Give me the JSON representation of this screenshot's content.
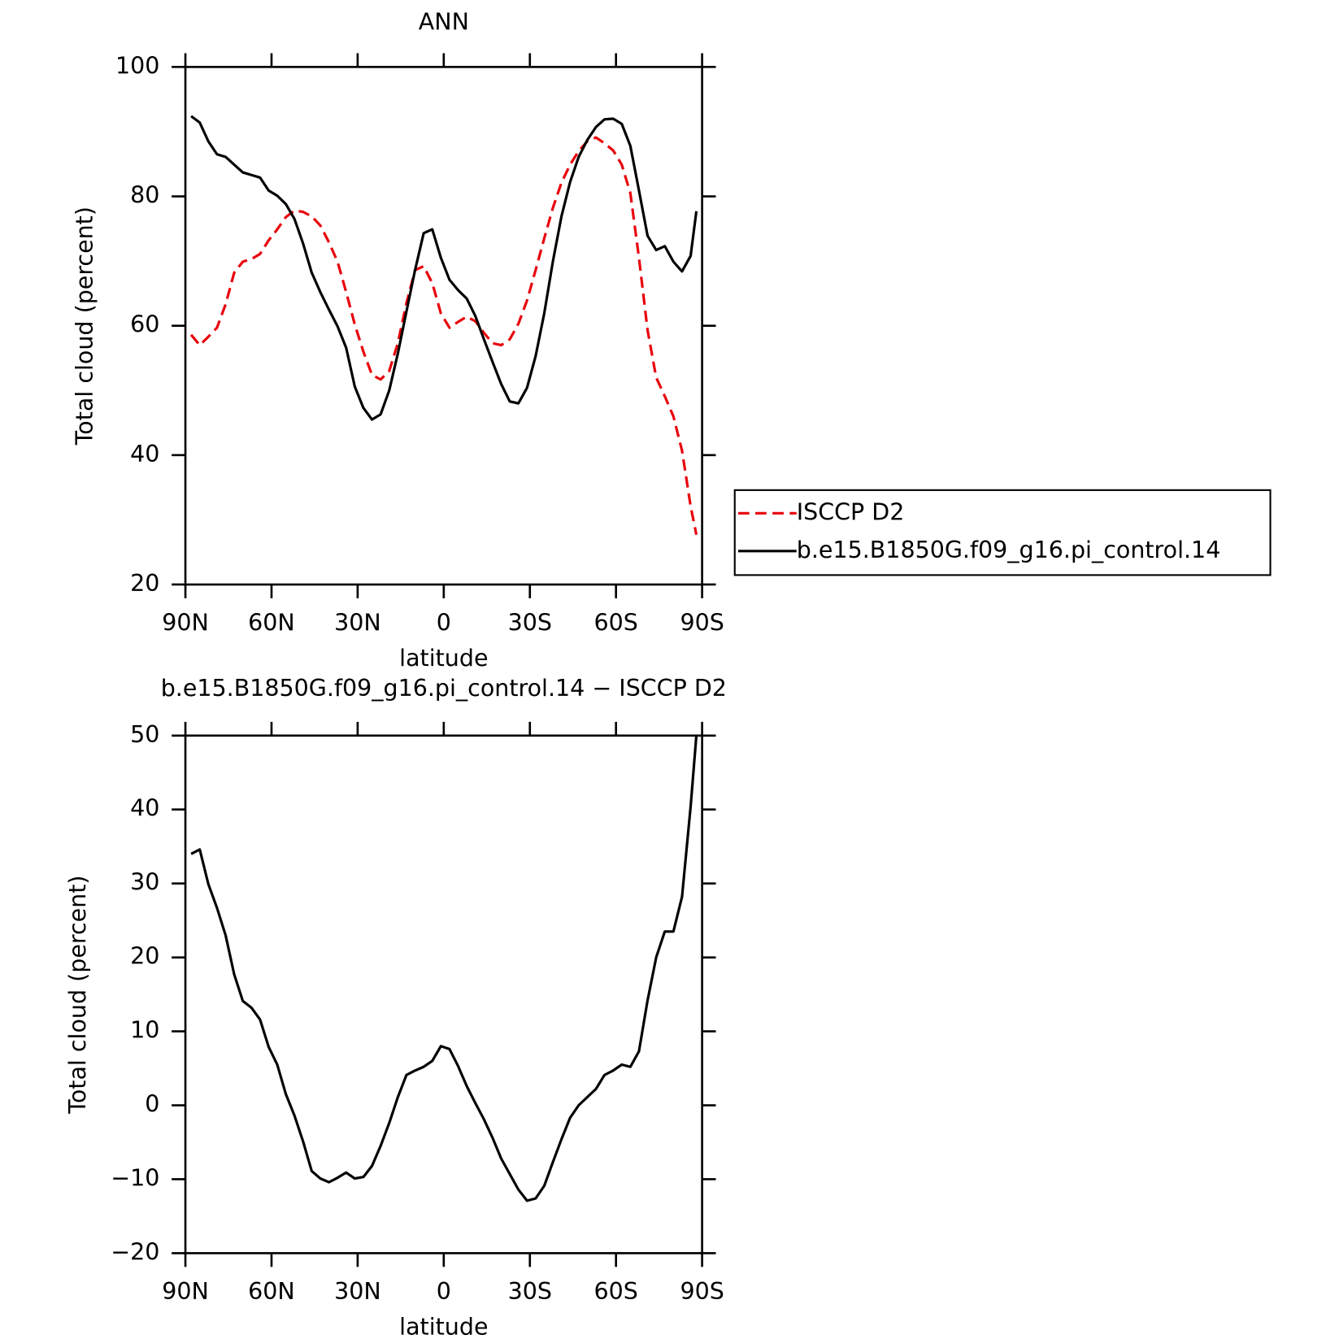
{
  "chart_data": [
    {
      "type": "line",
      "title": "ANN",
      "xlabel": "latitude",
      "ylabel": "Total cloud (percent)",
      "x": [
        88,
        85,
        82,
        79,
        76,
        73,
        70,
        67,
        64,
        61,
        58,
        55,
        52,
        49,
        46,
        43,
        40,
        37,
        34,
        31,
        28,
        25,
        22,
        19,
        16,
        13,
        10,
        7,
        4,
        1,
        -2,
        -5,
        -8,
        -11,
        -14,
        -17,
        -20,
        -23,
        -26,
        -29,
        -32,
        -35,
        -38,
        -41,
        -44,
        -47,
        -50,
        -53,
        -56,
        -59,
        -62,
        -65,
        -68,
        -71,
        -74,
        -77,
        -80,
        -83,
        -86,
        -88
      ],
      "series": [
        {
          "name": "ISCCP D2",
          "color": "#e8000b",
          "dashed": true,
          "values": [
            58.6,
            57.0,
            58.3,
            59.7,
            63.3,
            68.2,
            69.9,
            70.3,
            71.1,
            73.2,
            74.9,
            76.8,
            77.8,
            77.6,
            76.9,
            75.5,
            72.9,
            69.9,
            65.2,
            60.2,
            56.0,
            52.4,
            51.7,
            53.0,
            57.3,
            63.5,
            68.6,
            69.2,
            66.6,
            61.9,
            59.7,
            60.6,
            61.4,
            60.7,
            58.9,
            57.3,
            57.0,
            57.9,
            60.3,
            63.9,
            68.6,
            73.5,
            78.2,
            82.1,
            84.9,
            87.0,
            88.5,
            89.1,
            88.2,
            87.1,
            84.9,
            80.5,
            70.5,
            59.3,
            52.0,
            49.1,
            46.0,
            40.7,
            32.1,
            27.7
          ]
        },
        {
          "name": "b.e15.B1850G.f09_g16.pi_control.14",
          "color": "#000000",
          "dashed": false,
          "values": [
            92.4,
            91.4,
            88.5,
            86.5,
            86.1,
            84.9,
            83.7,
            83.3,
            82.9,
            80.9,
            80.1,
            78.8,
            76.5,
            72.7,
            68.2,
            65.2,
            62.5,
            59.9,
            56.6,
            50.6,
            47.3,
            45.5,
            46.3,
            50.0,
            55.7,
            62.2,
            68.6,
            74.3,
            74.9,
            70.5,
            67.1,
            65.5,
            64.2,
            61.5,
            57.9,
            54.4,
            51.0,
            48.3,
            48.0,
            50.4,
            55.3,
            61.9,
            69.9,
            76.9,
            82.2,
            86.1,
            88.7,
            90.7,
            91.9,
            92.0,
            91.2,
            87.8,
            80.9,
            73.9,
            71.7,
            72.3,
            69.9,
            68.4,
            70.8,
            77.7
          ]
        }
      ],
      "xlim": [
        90,
        -90
      ],
      "xticks": [
        {
          "value": 90,
          "label": "90N"
        },
        {
          "value": 60,
          "label": "60N"
        },
        {
          "value": 30,
          "label": "30N"
        },
        0,
        {
          "value": -30,
          "label": "30S"
        },
        {
          "value": -60,
          "label": "60S"
        },
        {
          "value": -90,
          "label": "90S"
        }
      ],
      "ylim": [
        20,
        100
      ],
      "yticks": [
        20,
        40,
        60,
        80,
        100
      ],
      "legend": "right"
    },
    {
      "type": "line",
      "title": "b.e15.B1850G.f09_g16.pi_control.14 − ISCCP D2",
      "xlabel": "latitude",
      "ylabel": "Total cloud (percent)",
      "x": [
        88,
        85,
        82,
        79,
        76,
        73,
        70,
        67,
        64,
        61,
        58,
        55,
        52,
        49,
        46,
        43,
        40,
        37,
        34,
        31,
        28,
        25,
        22,
        19,
        16,
        13,
        10,
        7,
        4,
        1,
        -2,
        -5,
        -8,
        -11,
        -14,
        -17,
        -20,
        -23,
        -26,
        -29,
        -32,
        -35,
        -38,
        -41,
        -44,
        -47,
        -50,
        -53,
        -56,
        -59,
        -62,
        -65,
        -68,
        -71,
        -74,
        -77,
        -80,
        -83,
        -86,
        -88
      ],
      "values": [
        34.0,
        34.6,
        29.9,
        26.7,
        23.0,
        17.7,
        14.1,
        13.2,
        11.6,
        7.9,
        5.5,
        1.5,
        -1.4,
        -4.9,
        -8.9,
        -9.9,
        -10.4,
        -9.8,
        -9.1,
        -9.9,
        -9.7,
        -8.2,
        -5.5,
        -2.4,
        1.1,
        4.1,
        4.7,
        5.2,
        6.0,
        8.0,
        7.6,
        5.3,
        2.6,
        0.3,
        -1.9,
        -4.4,
        -7.2,
        -9.3,
        -11.4,
        -12.9,
        -12.6,
        -10.9,
        -7.7,
        -4.6,
        -1.7,
        0.0,
        1.1,
        2.2,
        4.1,
        4.7,
        5.5,
        5.2,
        7.3,
        14.2,
        20.0,
        23.5,
        23.5,
        28.2,
        40.4,
        50.0
      ],
      "color": "#000000",
      "xlim": [
        90,
        -90
      ],
      "xticks": [
        {
          "value": 90,
          "label": "90N"
        },
        {
          "value": 60,
          "label": "60N"
        },
        {
          "value": 30,
          "label": "30N"
        },
        0,
        {
          "value": -30,
          "label": "30S"
        },
        {
          "value": -60,
          "label": "60S"
        },
        {
          "value": -90,
          "label": "90S"
        }
      ],
      "ylim": [
        -20,
        50
      ],
      "yticks": [
        {
          "value": -20,
          "label": "−20"
        },
        {
          "value": -10,
          "label": "−10"
        },
        0,
        10,
        20,
        30,
        40,
        50
      ]
    }
  ]
}
